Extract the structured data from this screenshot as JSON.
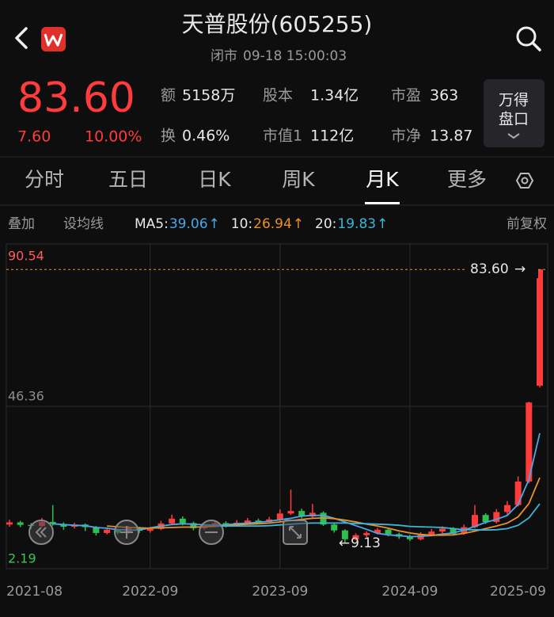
{
  "header": {
    "title": "天普股份(605255)",
    "status": "闭市",
    "time": "09-18 15:00:03"
  },
  "quote": {
    "price": "83.60",
    "change": "7.60",
    "change_pct": "10.00%",
    "stats": [
      {
        "label": "额",
        "value": "5158万"
      },
      {
        "label": "股本",
        "value": "1.34亿"
      },
      {
        "label": "市盈",
        "value": "363"
      },
      {
        "label": "换",
        "value": "0.46%"
      },
      {
        "label": "市值1",
        "value": "112亿"
      },
      {
        "label": "市净",
        "value": "13.87"
      }
    ],
    "button": [
      "万得",
      "盘口"
    ]
  },
  "tabs": {
    "items": [
      "分时",
      "五日",
      "日K",
      "周K",
      "月K",
      "更多"
    ],
    "active": 4
  },
  "toolbar": {
    "left": [
      "叠加",
      "设均线"
    ],
    "right": "前复权"
  },
  "chart_data": {
    "type": "candlestick",
    "categories": [
      "2021-08",
      null,
      null,
      null,
      null,
      null,
      null,
      null,
      null,
      null,
      null,
      null,
      null,
      "2022-09",
      null,
      null,
      null,
      null,
      null,
      null,
      null,
      null,
      null,
      null,
      null,
      "2023-09",
      null,
      null,
      null,
      null,
      null,
      null,
      null,
      null,
      null,
      null,
      null,
      "2024-09",
      null,
      null,
      null,
      null,
      null,
      null,
      null,
      null,
      null,
      null,
      null,
      "2025-09"
    ],
    "open": [
      14.2,
      14.8,
      14.1,
      13.8,
      14.9,
      14.3,
      13.6,
      14.2,
      13.5,
      11.9,
      12.8,
      12.0,
      13.2,
      12.5,
      13.0,
      14.5,
      15.8,
      14.6,
      13.2,
      13.9,
      14.6,
      14.0,
      14.7,
      15.3,
      14.9,
      15.6,
      17.2,
      17.9,
      16.4,
      17.4,
      14.2,
      12.6,
      10.2,
      11.3,
      11.9,
      12.8,
      11.6,
      10.9,
      10.2,
      11.5,
      12.3,
      13.1,
      11.7,
      13.5,
      16.8,
      14.9,
      17.6,
      19.5,
      25.9,
      52.0
    ],
    "high": [
      15.5,
      15.2,
      14.6,
      16.0,
      19.5,
      14.8,
      14.7,
      14.5,
      13.8,
      13.4,
      13.1,
      13.8,
      13.6,
      13.5,
      15.2,
      16.9,
      16.4,
      15.0,
      14.4,
      15.3,
      15.1,
      15.4,
      16.0,
      15.8,
      16.3,
      18.3,
      23.7,
      18.5,
      19.8,
      17.8,
      14.6,
      12.9,
      11.8,
      12.4,
      13.3,
      13.1,
      12.0,
      11.4,
      12.1,
      13.0,
      13.7,
      13.5,
      14.2,
      19.5,
      17.3,
      18.4,
      20.6,
      27.3,
      47.6,
      83.6
    ],
    "low": [
      13.6,
      13.5,
      13.0,
      13.5,
      13.9,
      12.8,
      13.1,
      12.4,
      11.2,
      11.5,
      11.6,
      11.7,
      11.9,
      12.0,
      12.7,
      14.2,
      14.0,
      12.6,
      12.8,
      13.5,
      13.4,
      13.6,
      14.2,
      14.3,
      14.4,
      15.1,
      16.8,
      15.9,
      16.0,
      13.8,
      12.0,
      9.13,
      9.9,
      10.8,
      11.5,
      11.0,
      10.3,
      9.7,
      9.9,
      11.1,
      11.8,
      11.2,
      11.4,
      13.2,
      14.4,
      14.5,
      16.9,
      19.1,
      25.4,
      51.5
    ],
    "close": [
      14.8,
      14.1,
      13.8,
      14.9,
      14.3,
      13.6,
      14.2,
      13.5,
      11.9,
      12.8,
      12.0,
      13.2,
      12.5,
      13.0,
      14.5,
      15.8,
      14.6,
      13.2,
      13.9,
      14.6,
      14.0,
      14.7,
      15.3,
      14.9,
      15.6,
      17.2,
      17.9,
      16.4,
      17.4,
      14.2,
      12.6,
      10.2,
      11.3,
      11.9,
      12.8,
      11.6,
      10.9,
      10.2,
      11.5,
      12.3,
      13.1,
      11.7,
      13.5,
      16.8,
      14.9,
      17.6,
      19.5,
      25.9,
      47.4,
      83.6
    ],
    "up_color": "#ff3b3b",
    "down_color": "#2fbf4f",
    "series": [
      {
        "name": "MA5:",
        "color": "#4aa8e8",
        "arrow": "↑",
        "values": [
          null,
          null,
          null,
          null,
          14.4,
          14.2,
          14.0,
          13.9,
          13.4,
          13.2,
          12.8,
          12.7,
          12.7,
          13.3,
          13.8,
          14.2,
          14.4,
          14.3,
          14.1,
          14.0,
          14.1,
          14.4,
          14.6,
          14.8,
          15.1,
          15.5,
          15.9,
          16.5,
          16.7,
          16.7,
          15.9,
          14.9,
          13.9,
          12.9,
          11.8,
          11.4,
          11.2,
          10.9,
          11.0,
          11.2,
          11.6,
          11.9,
          12.7,
          13.7,
          14.8,
          15.6,
          16.7,
          19.7,
          26.5,
          39.06
        ]
      },
      {
        "name": "10:",
        "color": "#e8902a",
        "arrow": "↑",
        "values": [
          null,
          null,
          null,
          null,
          null,
          null,
          null,
          null,
          null,
          13.8,
          13.6,
          13.4,
          13.3,
          13.2,
          13.3,
          13.4,
          13.5,
          13.5,
          13.6,
          13.7,
          13.9,
          14.1,
          14.3,
          14.4,
          14.6,
          14.9,
          15.3,
          15.6,
          15.9,
          16.0,
          15.8,
          15.4,
          14.9,
          14.3,
          13.8,
          13.2,
          12.5,
          11.9,
          11.5,
          11.3,
          11.3,
          11.4,
          11.8,
          12.4,
          13.1,
          13.8,
          14.6,
          16.3,
          19.9,
          26.94
        ]
      },
      {
        "name": "20:",
        "color": "#3bb6d6",
        "arrow": "↑",
        "values": [
          null,
          null,
          null,
          null,
          null,
          null,
          null,
          null,
          null,
          null,
          null,
          null,
          null,
          null,
          null,
          null,
          null,
          null,
          null,
          13.8,
          13.8,
          13.8,
          13.8,
          13.8,
          13.9,
          14.1,
          14.3,
          14.5,
          14.6,
          14.6,
          14.6,
          14.6,
          14.5,
          14.4,
          14.3,
          14.2,
          14.0,
          13.7,
          13.6,
          13.5,
          13.4,
          13.1,
          12.8,
          12.8,
          12.7,
          12.8,
          13.1,
          14.0,
          16.0,
          19.83
        ]
      }
    ],
    "ylim": [
      2.19,
      90.54
    ],
    "yticks": [
      2.19,
      46.36,
      90.54
    ],
    "ytick_colors": [
      "#3ac45a",
      "#8e8e8e",
      "#ff5a5a"
    ],
    "grid": true,
    "last_price": {
      "value": 83.6,
      "label": "83.60"
    },
    "last_arrow": "→",
    "low_mark": 9.13,
    "low_arrow": "←"
  }
}
